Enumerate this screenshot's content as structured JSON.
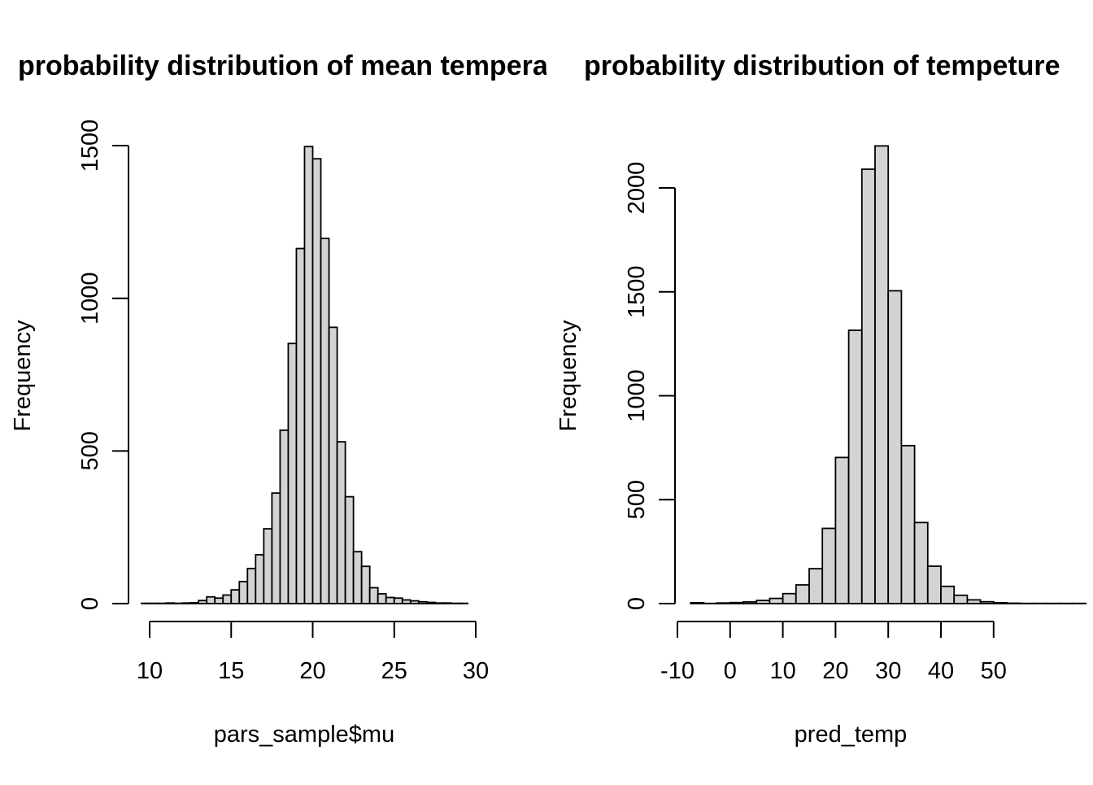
{
  "chart_data": [
    {
      "type": "bar",
      "title": "probability distribution of mean temperature",
      "xlabel": "pars_sample$mu",
      "ylabel": "Frequency",
      "xlim": [
        10,
        30
      ],
      "ylim": [
        0,
        1500
      ],
      "x_ticks": [
        "10",
        "15",
        "20",
        "25",
        "30"
      ],
      "y_ticks": [
        "0",
        "500",
        "1000",
        "1500"
      ],
      "bar_color": "#d3d3d3",
      "bin_width": 0.5,
      "bins": [
        {
          "start": 9.5,
          "value": 1
        },
        {
          "start": 10.0,
          "value": 1
        },
        {
          "start": 10.5,
          "value": 1
        },
        {
          "start": 11.0,
          "value": 2
        },
        {
          "start": 11.5,
          "value": 1
        },
        {
          "start": 12.0,
          "value": 2
        },
        {
          "start": 12.5,
          "value": 3
        },
        {
          "start": 13.0,
          "value": 10
        },
        {
          "start": 13.5,
          "value": 22
        },
        {
          "start": 14.0,
          "value": 18
        },
        {
          "start": 14.5,
          "value": 28
        },
        {
          "start": 15.0,
          "value": 45
        },
        {
          "start": 15.5,
          "value": 72
        },
        {
          "start": 16.0,
          "value": 115
        },
        {
          "start": 16.5,
          "value": 160
        },
        {
          "start": 17.0,
          "value": 245
        },
        {
          "start": 17.5,
          "value": 362
        },
        {
          "start": 18.0,
          "value": 568
        },
        {
          "start": 18.5,
          "value": 852
        },
        {
          "start": 19.0,
          "value": 1163
        },
        {
          "start": 19.5,
          "value": 1497
        },
        {
          "start": 20.0,
          "value": 1457
        },
        {
          "start": 20.5,
          "value": 1196
        },
        {
          "start": 21.0,
          "value": 905
        },
        {
          "start": 21.5,
          "value": 530
        },
        {
          "start": 22.0,
          "value": 350
        },
        {
          "start": 22.5,
          "value": 170
        },
        {
          "start": 23.0,
          "value": 122
        },
        {
          "start": 23.5,
          "value": 52
        },
        {
          "start": 24.0,
          "value": 32
        },
        {
          "start": 24.5,
          "value": 20
        },
        {
          "start": 25.0,
          "value": 18
        },
        {
          "start": 25.5,
          "value": 12
        },
        {
          "start": 26.0,
          "value": 9
        },
        {
          "start": 26.5,
          "value": 6
        },
        {
          "start": 27.0,
          "value": 4
        },
        {
          "start": 27.5,
          "value": 2
        },
        {
          "start": 28.0,
          "value": 2
        },
        {
          "start": 28.5,
          "value": 1
        },
        {
          "start": 29.0,
          "value": 1
        }
      ]
    },
    {
      "type": "bar",
      "title": "probability distribution of tempeture",
      "xlabel": "pred_temp",
      "ylabel": "Frequency",
      "xlim": [
        -10,
        50
      ],
      "ylim": [
        0,
        2000
      ],
      "x_ticks": [
        "-10",
        "0",
        "10",
        "20",
        "30",
        "40",
        "50"
      ],
      "y_ticks": [
        "0",
        "500",
        "1000",
        "1500",
        "2000"
      ],
      "bar_color": "#d3d3d3",
      "bin_width": 2.5,
      "bins": [
        {
          "start": -7.5,
          "value": 4
        },
        {
          "start": -5.0,
          "value": 1
        },
        {
          "start": -2.5,
          "value": 3
        },
        {
          "start": 0.0,
          "value": 5
        },
        {
          "start": 2.5,
          "value": 8
        },
        {
          "start": 5.0,
          "value": 15
        },
        {
          "start": 7.5,
          "value": 25
        },
        {
          "start": 10.0,
          "value": 48
        },
        {
          "start": 12.5,
          "value": 90
        },
        {
          "start": 15.0,
          "value": 168
        },
        {
          "start": 17.5,
          "value": 362
        },
        {
          "start": 20.0,
          "value": 703
        },
        {
          "start": 22.5,
          "value": 1315
        },
        {
          "start": 25.0,
          "value": 2090
        },
        {
          "start": 27.5,
          "value": 2202
        },
        {
          "start": 30.0,
          "value": 1505
        },
        {
          "start": 32.5,
          "value": 760
        },
        {
          "start": 35.0,
          "value": 390
        },
        {
          "start": 37.5,
          "value": 180
        },
        {
          "start": 40.0,
          "value": 83
        },
        {
          "start": 42.5,
          "value": 40
        },
        {
          "start": 45.0,
          "value": 18
        },
        {
          "start": 47.5,
          "value": 9
        },
        {
          "start": 50.0,
          "value": 4
        },
        {
          "start": 52.5,
          "value": 2
        },
        {
          "start": 55.0,
          "value": 1
        },
        {
          "start": 57.5,
          "value": 1
        },
        {
          "start": 60.0,
          "value": 1
        },
        {
          "start": 62.5,
          "value": 1
        },
        {
          "start": 65.0,
          "value": 1
        }
      ]
    }
  ]
}
